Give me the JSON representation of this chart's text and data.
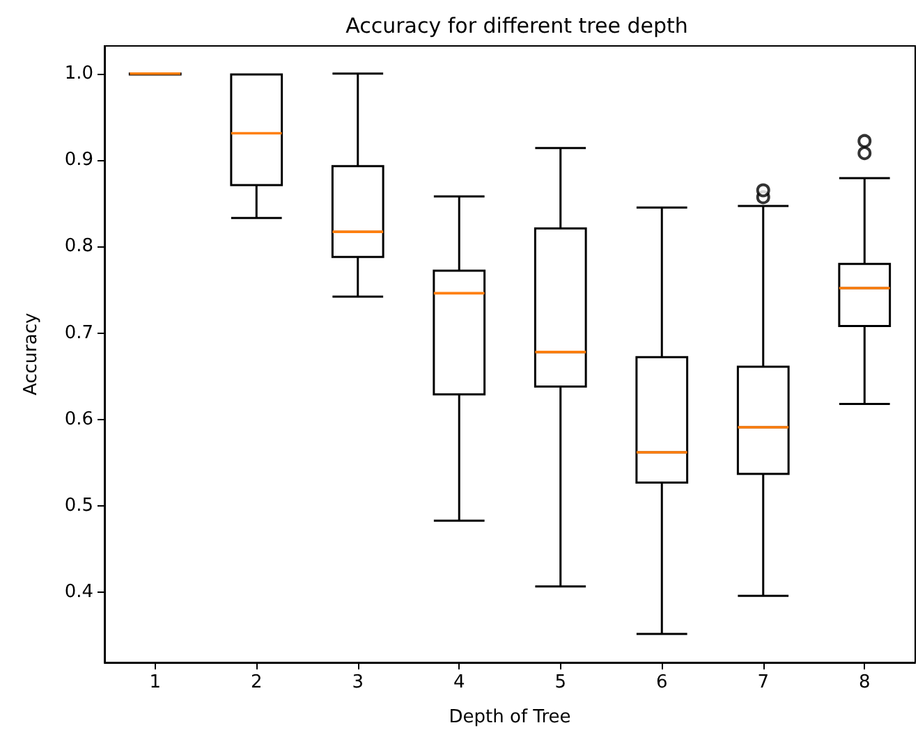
{
  "chart_data": {
    "type": "box",
    "title": "Accuracy for different tree depth",
    "xlabel": "Depth of Tree",
    "ylabel": "Accuracy",
    "categories": [
      "1",
      "2",
      "3",
      "4",
      "5",
      "6",
      "7",
      "8"
    ],
    "color": "#000000",
    "boxes": [
      {
        "low": 0.999,
        "q1": 0.999,
        "median": 1.0,
        "q3": 1.0,
        "high": 1.0
      },
      {
        "low": 0.833,
        "q1": 0.871,
        "median": 0.931,
        "q3": 0.999,
        "high": 0.999
      },
      {
        "low": 0.742,
        "q1": 0.788,
        "median": 0.817,
        "q3": 0.893,
        "high": 1.0
      },
      {
        "low": 0.483,
        "q1": 0.629,
        "median": 0.746,
        "q3": 0.772,
        "high": 0.858
      },
      {
        "low": 0.407,
        "q1": 0.638,
        "median": 0.678,
        "q3": 0.821,
        "high": 0.914
      },
      {
        "low": 0.352,
        "q1": 0.527,
        "median": 0.562,
        "q3": 0.672,
        "high": 0.845
      },
      {
        "low": 0.396,
        "q1": 0.537,
        "median": 0.591,
        "q3": 0.661,
        "high": 0.847,
        "outliers": [
          0.857,
          0.865
        ]
      },
      {
        "low": 0.618,
        "q1": 0.708,
        "median": 0.752,
        "q3": 0.78,
        "high": 0.879,
        "outliers": [
          0.908,
          0.922
        ]
      }
    ],
    "ylim": [
      0.319,
      1.032
    ],
    "yticks": [
      0.4,
      0.5,
      0.6,
      0.7,
      0.8,
      0.9,
      {
        "value": 1,
        "label": "1.0"
      }
    ],
    "grid": false
  }
}
